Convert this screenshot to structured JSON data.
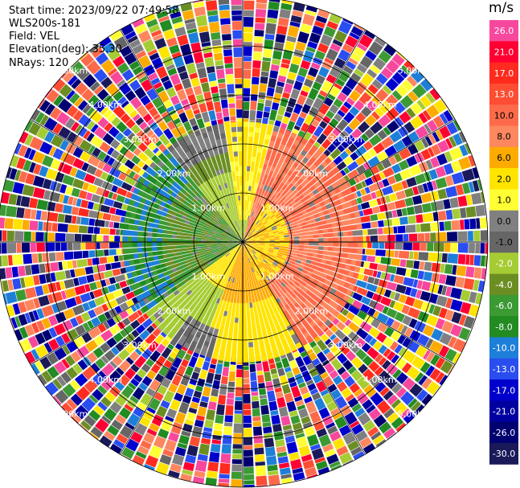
{
  "header": {
    "start_time": "Start time: 2023/09/22 07:49:58",
    "instrument": "WLS200s-181",
    "field": "Field: VEL",
    "elevation": "Elevation(deg): 35.30",
    "nrays": "NRays: 120"
  },
  "colorbar": {
    "unit": "m/s",
    "ticks": [
      "26.0",
      "21.0",
      "17.0",
      "13.0",
      "10.0",
      "8.0",
      "6.0",
      "2.0",
      "1.0",
      "0.0",
      "-1.0",
      "-2.0",
      "-4.0",
      "-6.0",
      "-8.0",
      "-10.0",
      "-13.0",
      "-17.0",
      "-21.0",
      "-26.0",
      "-30.0"
    ],
    "colors": [
      "#f7489d",
      "#ff0033",
      "#ff2b1f",
      "#fd4d33",
      "#fd6a4a",
      "#fd875f",
      "#fdab00",
      "#ffe400",
      "#ffff33",
      "#808080",
      "#666666",
      "#a6cc33",
      "#6b8e23",
      "#3c9a33",
      "#228b22",
      "#1e7fd9",
      "#2a4df0",
      "#0000cc",
      "#0000a0",
      "#000070",
      "#1a1a5a"
    ]
  },
  "chart_data": {
    "type": "heatmap",
    "projection": "polar-ppi",
    "field": "VEL",
    "units": "m/s",
    "nrays": 120,
    "range_rings_km": [
      1.0,
      2.0,
      3.0,
      4.0,
      5.0
    ],
    "range_ring_labels": [
      "1.00km",
      "2.00km",
      "3.00km",
      "4.00km",
      "5.00km"
    ],
    "max_range_km": 5.0,
    "valid_data_range_km": 2.4,
    "grid": true,
    "legend": "right",
    "color_range": [
      -30.0,
      26.0
    ],
    "velocity_pattern": {
      "north_sector": "0.0 to 2.0",
      "east_sector": "6.0 to 10.0",
      "south_sector": "-4.0 to -1.0",
      "west_sector": "-8.0 to -4.0",
      "beyond_valid_range": "noise"
    }
  }
}
